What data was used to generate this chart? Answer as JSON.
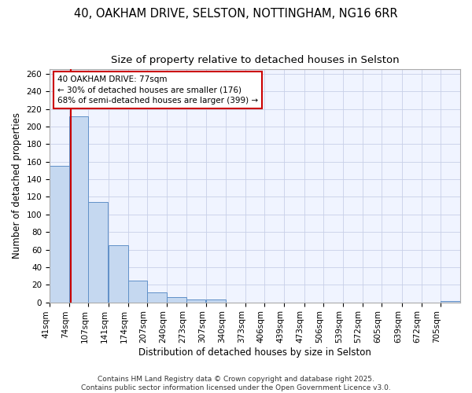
{
  "title1": "40, OAKHAM DRIVE, SELSTON, NOTTINGHAM, NG16 6RR",
  "title2": "Size of property relative to detached houses in Selston",
  "xlabel": "Distribution of detached houses by size in Selston",
  "ylabel": "Number of detached properties",
  "bins": [
    41,
    74,
    107,
    141,
    174,
    207,
    240,
    273,
    307,
    340,
    373,
    406,
    439,
    473,
    506,
    539,
    572,
    605,
    639,
    672,
    705
  ],
  "counts": [
    155,
    212,
    114,
    65,
    25,
    11,
    6,
    3,
    3,
    0,
    0,
    0,
    0,
    0,
    0,
    0,
    0,
    0,
    0,
    0,
    1
  ],
  "bar_color": "#c5d8f0",
  "bar_edge_color": "#6090c8",
  "property_size": 77,
  "red_line_color": "#cc0000",
  "annotation_text": "40 OAKHAM DRIVE: 77sqm\n← 30% of detached houses are smaller (176)\n68% of semi-detached houses are larger (399) →",
  "annotation_box_color": "#ffffff",
  "annotation_box_edge": "#cc0000",
  "ylim": [
    0,
    265
  ],
  "yticks": [
    0,
    20,
    40,
    60,
    80,
    100,
    120,
    140,
    160,
    180,
    200,
    220,
    240,
    260
  ],
  "footer1": "Contains HM Land Registry data © Crown copyright and database right 2025.",
  "footer2": "Contains public sector information licensed under the Open Government Licence v3.0.",
  "bg_color": "#ffffff",
  "plot_bg_color": "#f0f4ff",
  "grid_color": "#c8d0e8",
  "title_fontsize": 10.5,
  "subtitle_fontsize": 9.5,
  "axis_label_fontsize": 8.5,
  "tick_fontsize": 7.5,
  "annot_fontsize": 7.5,
  "footer_fontsize": 6.5
}
